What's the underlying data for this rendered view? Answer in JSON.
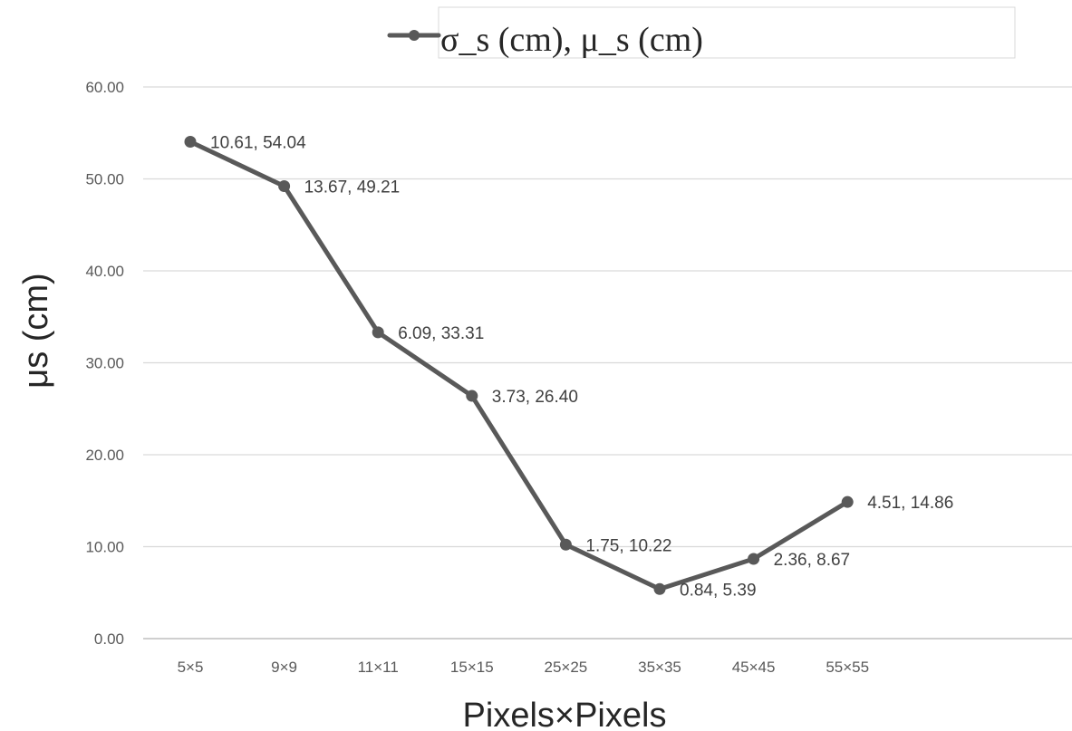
{
  "chart_data": {
    "type": "line",
    "categories": [
      "5×5",
      "9×9",
      "11×11",
      "15×15",
      "25×25",
      "35×35",
      "45×45",
      "55×55"
    ],
    "series": [
      {
        "name": "σ_s (cm), μ_s (cm)",
        "values": [
          54.04,
          49.21,
          33.31,
          26.4,
          10.22,
          5.39,
          8.67,
          14.86
        ],
        "data_labels": [
          "10.61, 54.04",
          "13.67, 49.21",
          "6.09, 33.31",
          "3.73, 26.40",
          "1.75, 10.22",
          "0.84, 5.39",
          "2.36, 8.67",
          "4.51, 14.86"
        ]
      }
    ],
    "xlabel": "Pixels×Pixels",
    "ylabel": "μs (cm)",
    "ylim": [
      0,
      60
    ],
    "yticks": [
      "0.00",
      "10.00",
      "20.00",
      "30.00",
      "40.00",
      "50.00",
      "60.00"
    ],
    "grid": true,
    "legend_position": "top",
    "colors": {
      "series": "#595959",
      "grid": "#d9d9d9",
      "axis": "#bfbfbf",
      "tick_text": "#595959"
    }
  }
}
